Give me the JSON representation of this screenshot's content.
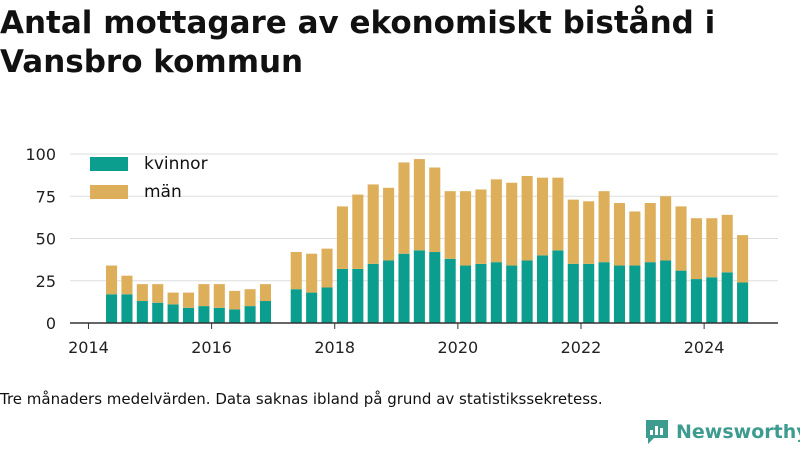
{
  "title": "Antal mottagare av ekonomiskt bistånd i Vansbro kommun",
  "caption": "Tre månaders medelvärden. Data saknas ibland på grund av statistikssekretess.",
  "brand": "Newsworthy",
  "colors": {
    "kvinnor": "#0b9e8f",
    "man": "#ddaf5b",
    "grid": "#dddddd",
    "axis": "#333333",
    "brand": "#3e9b8f"
  },
  "chart_data": {
    "type": "bar",
    "stacked": true,
    "xlim": [
      2013.7,
      2025.2
    ],
    "ylim": [
      0,
      100
    ],
    "yticks": [
      0,
      25,
      50,
      75,
      100
    ],
    "xticks": [
      2014,
      2016,
      2018,
      2020,
      2022,
      2024
    ],
    "grid": true,
    "legend": "top-left",
    "x": [
      2014.375,
      2014.625,
      2014.875,
      2015.125,
      2015.375,
      2015.625,
      2015.875,
      2016.125,
      2016.375,
      2016.625,
      2016.875,
      2017.375,
      2017.625,
      2017.875,
      2018.125,
      2018.375,
      2018.625,
      2018.875,
      2019.125,
      2019.375,
      2019.625,
      2019.875,
      2020.125,
      2020.375,
      2020.625,
      2020.875,
      2021.125,
      2021.375,
      2021.625,
      2021.875,
      2022.125,
      2022.375,
      2022.625,
      2022.875,
      2023.125,
      2023.375,
      2023.625,
      2023.875,
      2024.125,
      2024.375,
      2024.625
    ],
    "series": [
      {
        "name": "kvinnor",
        "values": [
          17,
          17,
          13,
          12,
          11,
          9,
          10,
          9,
          8,
          10,
          13,
          20,
          18,
          21,
          32,
          32,
          35,
          37,
          41,
          43,
          42,
          38,
          34,
          35,
          36,
          34,
          37,
          40,
          43,
          35,
          35,
          36,
          34,
          34,
          36,
          37,
          31,
          26,
          27,
          30,
          24
        ]
      },
      {
        "name": "män",
        "values": [
          17,
          11,
          10,
          11,
          7,
          9,
          13,
          14,
          11,
          10,
          10,
          22,
          23,
          23,
          37,
          44,
          47,
          43,
          54,
          54,
          50,
          40,
          44,
          44,
          49,
          49,
          50,
          46,
          43,
          38,
          37,
          42,
          37,
          32,
          35,
          38,
          38,
          36,
          35,
          34,
          28
        ]
      }
    ]
  }
}
